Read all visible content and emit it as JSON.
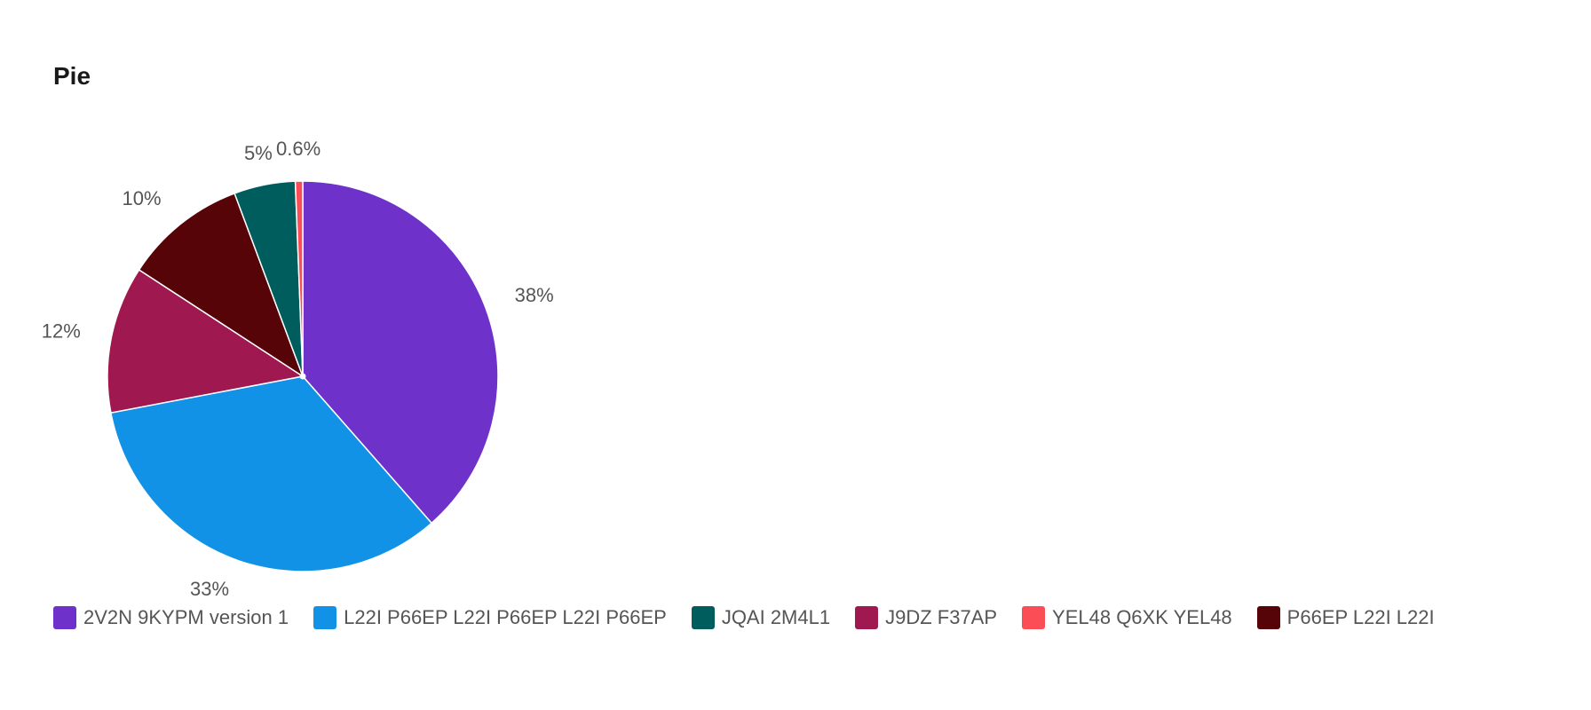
{
  "chart_data": {
    "type": "pie",
    "title": "Pie",
    "slices": [
      {
        "label": "2V2N 9KYPM version 1",
        "value": 38,
        "display": "38%",
        "color": "#6e31c9"
      },
      {
        "label": "L22I P66EP L22I P66EP L22I P66EP",
        "value": 33,
        "display": "33%",
        "color": "#1192e6"
      },
      {
        "label": "J9DZ F37AP",
        "value": 12,
        "display": "12%",
        "color": "#9f1850"
      },
      {
        "label": "P66EP L22I L22I",
        "value": 10,
        "display": "10%",
        "color": "#570408"
      },
      {
        "label": "JQAI 2M4L1",
        "value": 5,
        "display": "5%",
        "color": "#005d5d"
      },
      {
        "label": "YEL48 Q6XK YEL48",
        "value": 0.6,
        "display": "0.6%",
        "color": "#fa4d56"
      }
    ],
    "legend": [
      {
        "label": "2V2N 9KYPM version 1",
        "color": "#6e31c9"
      },
      {
        "label": "L22I P66EP L22I P66EP L22I P66EP",
        "color": "#1192e6"
      },
      {
        "label": "JQAI 2M4L1",
        "color": "#005d5d"
      },
      {
        "label": "J9DZ F37AP",
        "color": "#9f1850"
      },
      {
        "label": "YEL48 Q6XK YEL48",
        "color": "#fa4d56"
      },
      {
        "label": "P66EP L22I L22I",
        "color": "#570408"
      }
    ],
    "legend_position": "bottom-left"
  }
}
